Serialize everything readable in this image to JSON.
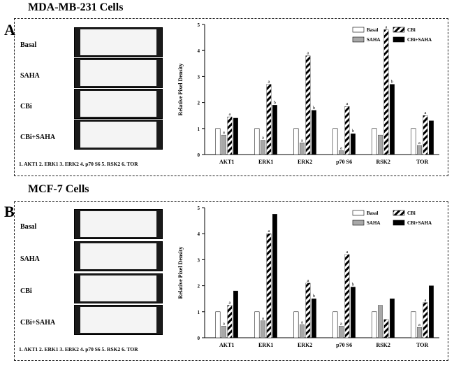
{
  "panels": [
    {
      "letter": "A",
      "title": "MDA-MB-231 Cells",
      "rows": [
        "Basal",
        "SAHA",
        "CBi",
        "CBi+SAHA"
      ],
      "protein_legend": "1. AKT1   2. ERK1   3. ERK2   4. p70 S6   5. RSK2   6. TOR"
    },
    {
      "letter": "B",
      "title": "MCF-7 Cells",
      "rows": [
        "Basal",
        "SAHA",
        "CBi",
        "CBi+SAHA"
      ],
      "protein_legend": "1. AKT1   2. ERK1   3. ERK2   4. p70 S6   5. RSK2   6. TOR"
    }
  ],
  "chart_data": [
    {
      "type": "bar",
      "ylabel": "Relative Pixel Density",
      "ylim": [
        0,
        5
      ],
      "categories": [
        "AKT1",
        "ERK1",
        "ERK2",
        "p70 S6",
        "RSK2",
        "TOR"
      ],
      "series": [
        {
          "name": "Basal",
          "values": [
            1,
            1,
            1,
            1,
            1,
            1
          ]
        },
        {
          "name": "SAHA",
          "values": [
            0.75,
            0.55,
            0.45,
            0.15,
            0.75,
            0.35
          ]
        },
        {
          "name": "CBi",
          "values": [
            1.45,
            2.7,
            3.8,
            1.85,
            4.8,
            1.5
          ]
        },
        {
          "name": "CBi+SAHA",
          "values": [
            1.4,
            1.9,
            1.7,
            0.8,
            2.7,
            1.3
          ]
        }
      ],
      "annotations": [
        {
          "cat": 0,
          "series": 1,
          "label": "a"
        },
        {
          "cat": 0,
          "series": 2,
          "label": "a"
        },
        {
          "cat": 1,
          "series": 1,
          "label": "a"
        },
        {
          "cat": 1,
          "series": 2,
          "label": "a"
        },
        {
          "cat": 1,
          "series": 3,
          "label": "b"
        },
        {
          "cat": 2,
          "series": 1,
          "label": "a"
        },
        {
          "cat": 2,
          "series": 2,
          "label": "a"
        },
        {
          "cat": 2,
          "series": 3,
          "label": "b"
        },
        {
          "cat": 3,
          "series": 1,
          "label": "a"
        },
        {
          "cat": 3,
          "series": 2,
          "label": "a"
        },
        {
          "cat": 3,
          "series": 3,
          "label": "b"
        },
        {
          "cat": 4,
          "series": 2,
          "label": "a"
        },
        {
          "cat": 4,
          "series": 3,
          "label": "b"
        },
        {
          "cat": 5,
          "series": 1,
          "label": "a"
        },
        {
          "cat": 5,
          "series": 2,
          "label": "a"
        }
      ]
    },
    {
      "type": "bar",
      "ylabel": "Relative Pixel Density",
      "ylim": [
        0,
        5
      ],
      "categories": [
        "AKT1",
        "ERK1",
        "ERK2",
        "p70 S6",
        "RSK2",
        "TOR"
      ],
      "series": [
        {
          "name": "Basal",
          "values": [
            1,
            1,
            1,
            1,
            1,
            1
          ]
        },
        {
          "name": "SAHA",
          "values": [
            0.45,
            0.65,
            0.5,
            0.45,
            1.25,
            0.4
          ]
        },
        {
          "name": "CBi",
          "values": [
            1.25,
            4.0,
            2.1,
            3.2,
            0.7,
            1.35
          ]
        },
        {
          "name": "CBi+SAHA",
          "values": [
            1.8,
            4.75,
            1.5,
            1.95,
            1.5,
            2.0
          ]
        }
      ],
      "annotations": [
        {
          "cat": 0,
          "series": 1,
          "label": "a"
        },
        {
          "cat": 0,
          "series": 2,
          "label": "a"
        },
        {
          "cat": 1,
          "series": 1,
          "label": "a"
        },
        {
          "cat": 1,
          "series": 2,
          "label": "a"
        },
        {
          "cat": 2,
          "series": 1,
          "label": "a"
        },
        {
          "cat": 2,
          "series": 2,
          "label": "a"
        },
        {
          "cat": 2,
          "series": 3,
          "label": "b"
        },
        {
          "cat": 3,
          "series": 1,
          "label": "a"
        },
        {
          "cat": 3,
          "series": 2,
          "label": "a"
        },
        {
          "cat": 3,
          "series": 3,
          "label": "b"
        },
        {
          "cat": 5,
          "series": 1,
          "label": "a"
        },
        {
          "cat": 5,
          "series": 2,
          "label": "a"
        }
      ]
    }
  ]
}
